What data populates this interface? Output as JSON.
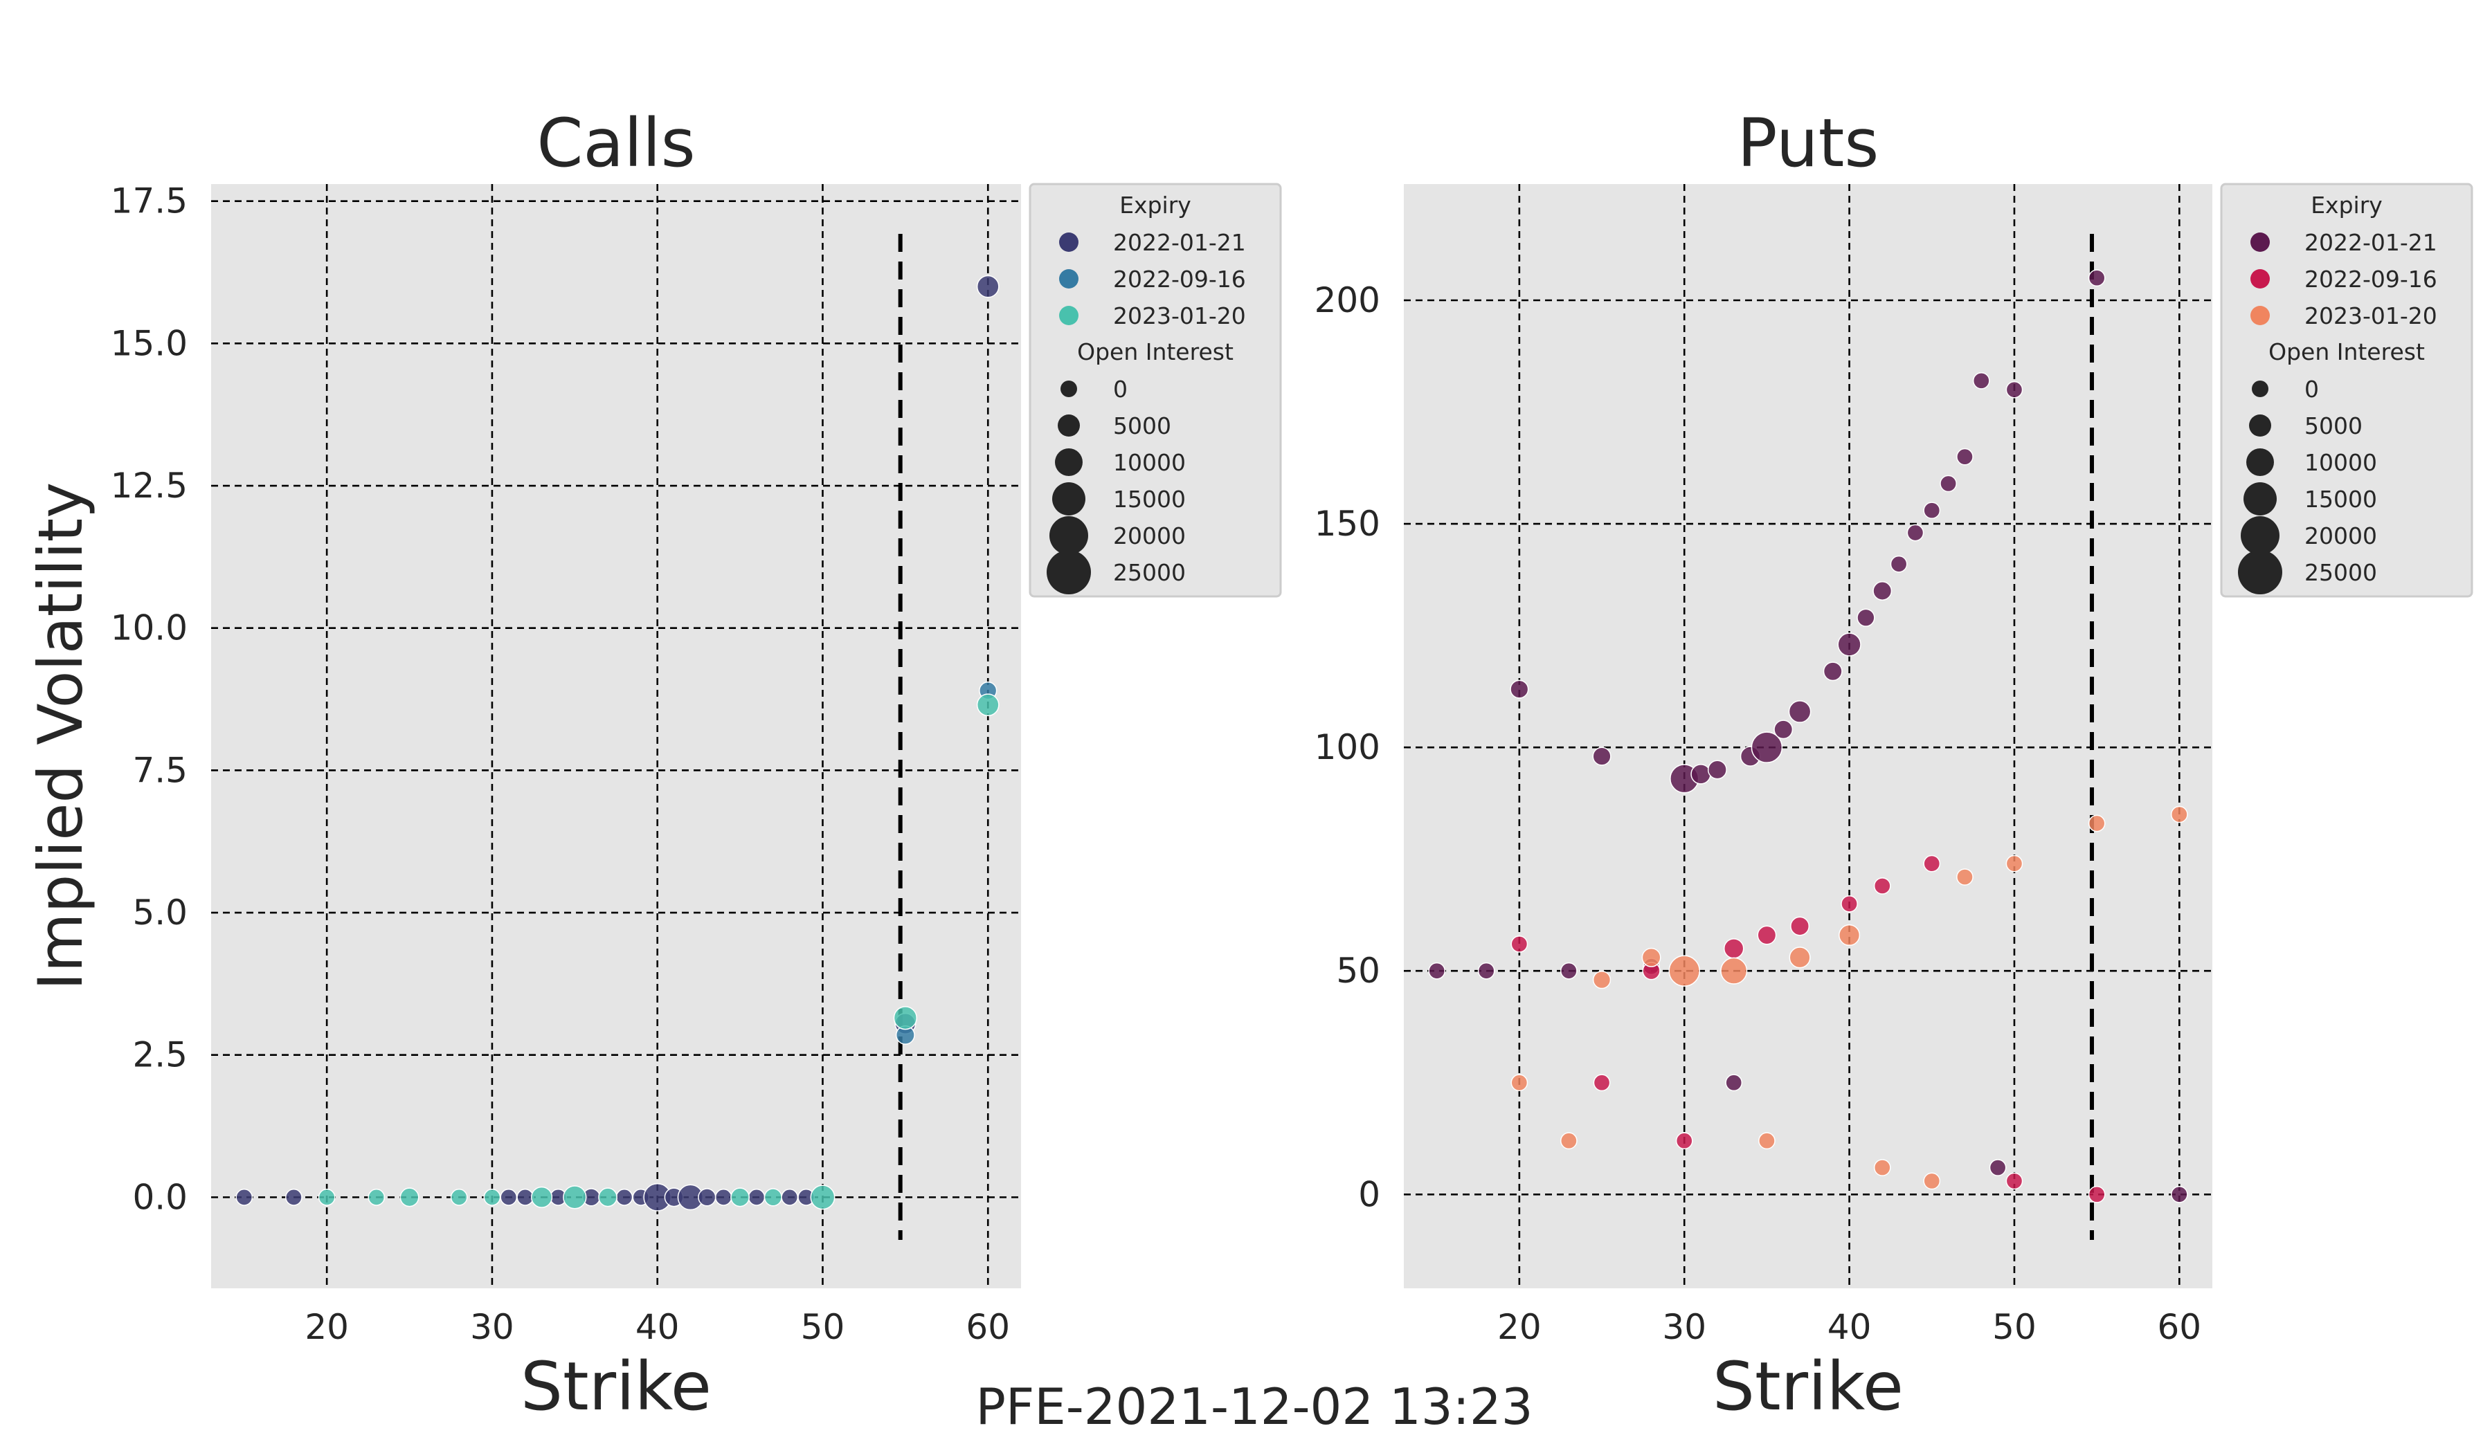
{
  "suptitle": "PFE-2021-12-02 13:23",
  "legend": {
    "expiry_title": "Expiry",
    "size_title": "Open Interest",
    "size_labels": [
      "0",
      "5000",
      "10000",
      "15000",
      "20000",
      "25000"
    ]
  },
  "chart_data": [
    {
      "type": "scatter",
      "title": "Calls",
      "xlabel": "Strike",
      "ylabel": "Implied Volatility",
      "xlim": [
        13,
        62
      ],
      "ylim": [
        -1.6,
        17.8
      ],
      "xticks": [
        "20",
        "30",
        "40",
        "50",
        "60"
      ],
      "yticks": [
        "0.0",
        "2.5",
        "5.0",
        "7.5",
        "10.0",
        "12.5",
        "15.0",
        "17.5"
      ],
      "grid": true,
      "spot_line": 54.7,
      "legend_position": "outside-right-top",
      "series": [
        {
          "name": "2022-01-21",
          "color": "#3b3b72",
          "points": [
            [
              15,
              0,
              2000
            ],
            [
              18,
              0,
              2000
            ],
            [
              31,
              0,
              2000
            ],
            [
              32,
              0,
              2000
            ],
            [
              34,
              0,
              2000
            ],
            [
              36,
              0,
              3000
            ],
            [
              38,
              0,
              2000
            ],
            [
              39,
              0,
              2000
            ],
            [
              40,
              0,
              12000
            ],
            [
              41,
              0,
              4000
            ],
            [
              42,
              0,
              10000
            ],
            [
              43,
              0,
              3000
            ],
            [
              44,
              0,
              2000
            ],
            [
              46,
              0,
              2000
            ],
            [
              48,
              0,
              2000
            ],
            [
              49,
              0,
              2000
            ],
            [
              55,
              3.05,
              6000
            ],
            [
              60,
              16.0,
              7000
            ]
          ]
        },
        {
          "name": "2022-09-16",
          "color": "#357ba3",
          "points": [
            [
              55,
              2.85,
              4000
            ],
            [
              60,
              8.9,
              3000
            ]
          ]
        },
        {
          "name": "2023-01-20",
          "color": "#49c1ad",
          "points": [
            [
              20,
              0,
              2000
            ],
            [
              23,
              0,
              2000
            ],
            [
              25,
              0,
              4000
            ],
            [
              28,
              0,
              2000
            ],
            [
              30,
              0,
              2000
            ],
            [
              33,
              0,
              6000
            ],
            [
              35,
              0,
              8000
            ],
            [
              37,
              0,
              4000
            ],
            [
              45,
              0,
              4000
            ],
            [
              47,
              0,
              3000
            ],
            [
              50,
              0,
              9000
            ],
            [
              55,
              3.15,
              8000
            ],
            [
              60,
              8.65,
              7000
            ]
          ]
        }
      ]
    },
    {
      "type": "scatter",
      "title": "Puts",
      "xlabel": "Strike",
      "ylabel": "",
      "xlim": [
        13,
        62
      ],
      "ylim": [
        -21,
        226
      ],
      "xticks": [
        "20",
        "30",
        "40",
        "50",
        "60"
      ],
      "yticks": [
        "0",
        "50",
        "100",
        "150",
        "200"
      ],
      "grid": true,
      "spot_line": 54.7,
      "legend_position": "outside-right-top",
      "series": [
        {
          "name": "2022-01-21",
          "color": "#5c1a4f",
          "points": [
            [
              15,
              50,
              2000
            ],
            [
              18,
              50,
              2000
            ],
            [
              20,
              113,
              3500
            ],
            [
              23,
              50,
              2000
            ],
            [
              25,
              98,
              3500
            ],
            [
              28,
              51,
              2000
            ],
            [
              30,
              93,
              13000
            ],
            [
              31,
              94,
              5000
            ],
            [
              32,
              95,
              4000
            ],
            [
              33,
              25,
              2000
            ],
            [
              34,
              98,
              5000
            ],
            [
              35,
              100,
              15000
            ],
            [
              36,
              104,
              4000
            ],
            [
              37,
              108,
              7000
            ],
            [
              39,
              117,
              4000
            ],
            [
              40,
              123,
              8000
            ],
            [
              41,
              129,
              3000
            ],
            [
              42,
              135,
              4000
            ],
            [
              43,
              141,
              2000
            ],
            [
              44,
              148,
              2000
            ],
            [
              45,
              153,
              2000
            ],
            [
              46,
              159,
              2000
            ],
            [
              47,
              165,
              2000
            ],
            [
              48,
              182,
              2000
            ],
            [
              49,
              6,
              2000
            ],
            [
              50,
              180,
              2000
            ],
            [
              55,
              205,
              2000
            ],
            [
              60,
              0,
              2000
            ]
          ]
        },
        {
          "name": "2022-09-16",
          "color": "#c8194e",
          "points": [
            [
              20,
              56,
              2000
            ],
            [
              25,
              25,
              2000
            ],
            [
              28,
              50,
              3000
            ],
            [
              30,
              12,
              2000
            ],
            [
              33,
              55,
              5000
            ],
            [
              35,
              58,
              4000
            ],
            [
              37,
              60,
              4000
            ],
            [
              40,
              65,
              2000
            ],
            [
              42,
              69,
              2000
            ],
            [
              45,
              74,
              2000
            ],
            [
              50,
              3,
              2000
            ],
            [
              55,
              0,
              2000
            ]
          ]
        },
        {
          "name": "2023-01-20",
          "color": "#f0855f",
          "points": [
            [
              20,
              25,
              2000
            ],
            [
              23,
              12,
              2000
            ],
            [
              25,
              48,
              3000
            ],
            [
              28,
              53,
              4000
            ],
            [
              30,
              50,
              15000
            ],
            [
              33,
              50,
              11000
            ],
            [
              35,
              12,
              2000
            ],
            [
              37,
              53,
              6000
            ],
            [
              40,
              58,
              6000
            ],
            [
              42,
              6,
              2000
            ],
            [
              45,
              3,
              2000
            ],
            [
              47,
              71,
              2000
            ],
            [
              50,
              74,
              2000
            ],
            [
              55,
              83,
              2000
            ],
            [
              60,
              85,
              2000
            ]
          ]
        }
      ]
    }
  ]
}
